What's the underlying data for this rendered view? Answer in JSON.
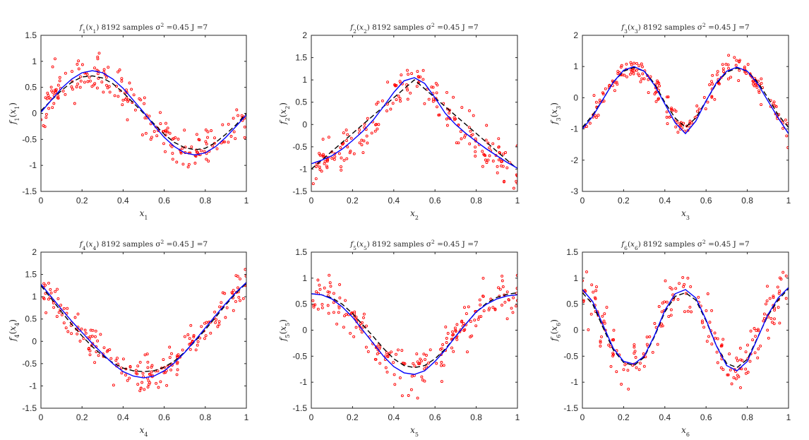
{
  "figure": {
    "colors": {
      "samples": "#ff0000",
      "estimate": "#0000ff",
      "truth": "#000000",
      "axes": "#262626"
    }
  },
  "chart_data": [
    {
      "type": "scatter",
      "title": "f1(x1) 8192 samples σ² =0.45 J =7",
      "title_parts": {
        "f": "f",
        "sub": "1",
        "x": "x",
        "xsub": "1",
        "rest": ") 8192 samples σ",
        "sup": "2",
        "tail": " =0.45 J =7"
      },
      "xlabel": "x",
      "xlabel_sub": "1",
      "ylabel": "f",
      "ylabel_sub": "1",
      "ylabel_arg_sub": "1",
      "xlim": [
        0,
        1
      ],
      "ylim": [
        -1.5,
        1.5
      ],
      "xticks": [
        0,
        0.2,
        0.4,
        0.6,
        0.8,
        1
      ],
      "xtick_labels": [
        "0",
        "0.2",
        "0.4",
        "0.6",
        "0.8",
        "1"
      ],
      "yticks": [
        -1.5,
        -1,
        -0.5,
        0,
        0.5,
        1,
        1.5
      ],
      "ytick_labels": [
        "-1.5",
        "-1",
        "-0.5",
        "0",
        "0.5",
        "1",
        "1.5"
      ],
      "series": [
        {
          "name": "estimate",
          "style": "solid-blue",
          "x": [
            0,
            0.05,
            0.1,
            0.15,
            0.2,
            0.25,
            0.3,
            0.35,
            0.4,
            0.45,
            0.5,
            0.55,
            0.6,
            0.65,
            0.7,
            0.75,
            0.8,
            0.85,
            0.9,
            0.95,
            1
          ],
          "y": [
            0.02,
            0.25,
            0.48,
            0.66,
            0.78,
            0.82,
            0.78,
            0.66,
            0.48,
            0.25,
            0.02,
            -0.23,
            -0.46,
            -0.64,
            -0.76,
            -0.8,
            -0.76,
            -0.64,
            -0.46,
            -0.25,
            -0.03
          ]
        },
        {
          "name": "truth",
          "style": "dashed-black",
          "x": [
            0,
            0.05,
            0.1,
            0.15,
            0.2,
            0.25,
            0.3,
            0.35,
            0.4,
            0.45,
            0.5,
            0.55,
            0.6,
            0.65,
            0.7,
            0.75,
            0.8,
            0.85,
            0.9,
            0.95,
            1
          ],
          "y": [
            0.05,
            0.25,
            0.44,
            0.6,
            0.7,
            0.72,
            0.68,
            0.57,
            0.4,
            0.2,
            0,
            -0.2,
            -0.4,
            -0.56,
            -0.66,
            -0.7,
            -0.67,
            -0.56,
            -0.4,
            -0.22,
            0
          ]
        }
      ],
      "noise": {
        "n": 200,
        "sigma": 0.2,
        "seed": 11
      }
    },
    {
      "type": "scatter",
      "title": "f2(x2) 8192 samples σ² =0.45 J =7",
      "title_parts": {
        "f": "f",
        "sub": "2",
        "x": "x",
        "xsub": "2",
        "rest": ") 8192 samples σ",
        "sup": "2",
        "tail": " =0.45 J =7"
      },
      "xlabel": "x",
      "xlabel_sub": "2",
      "ylabel": "f",
      "ylabel_sub": "2",
      "ylabel_arg_sub": "2",
      "xlim": [
        0,
        1
      ],
      "ylim": [
        -1.5,
        2
      ],
      "xticks": [
        0,
        0.2,
        0.4,
        0.6,
        0.8,
        1
      ],
      "xtick_labels": [
        "0",
        "0.2",
        "0.4",
        "0.6",
        "0.8",
        "1"
      ],
      "yticks": [
        -1.5,
        -1,
        -0.5,
        0,
        0.5,
        1,
        1.5,
        2
      ],
      "ytick_labels": [
        "-1.5",
        "-1",
        "-0.5",
        "0",
        "0.5",
        "1",
        "1.5",
        "2"
      ],
      "series": [
        {
          "name": "estimate",
          "style": "solid-blue",
          "x": [
            0,
            0.05,
            0.1,
            0.15,
            0.2,
            0.25,
            0.3,
            0.35,
            0.4,
            0.45,
            0.5,
            0.55,
            0.6,
            0.65,
            0.7,
            0.75,
            0.8,
            0.85,
            0.9,
            0.95,
            1
          ],
          "y": [
            -0.88,
            -0.8,
            -0.7,
            -0.55,
            -0.36,
            -0.15,
            0.1,
            0.4,
            0.72,
            0.98,
            1.05,
            0.92,
            0.6,
            0.25,
            0.0,
            -0.2,
            -0.38,
            -0.55,
            -0.7,
            -0.85,
            -0.98
          ]
        },
        {
          "name": "truth",
          "style": "dashed-black",
          "x": [
            0,
            0.1,
            0.2,
            0.3,
            0.4,
            0.5,
            0.6,
            0.7,
            0.8,
            0.9,
            1
          ],
          "y": [
            -1,
            -0.6,
            -0.2,
            0.2,
            0.6,
            1,
            0.6,
            0.2,
            -0.2,
            -0.6,
            -1
          ]
        }
      ],
      "noise": {
        "n": 200,
        "sigma": 0.22,
        "seed": 23
      }
    },
    {
      "type": "scatter",
      "title": "f3(x3) 8192 samples σ² =0.45 J =7",
      "title_parts": {
        "f": "f",
        "sub": "3",
        "x": "x",
        "xsub": "3",
        "rest": ") 8192 samples σ",
        "sup": "2",
        "tail": " =0.45 J =7"
      },
      "xlabel": "x",
      "xlabel_sub": "3",
      "ylabel": "f",
      "ylabel_sub": "3",
      "ylabel_arg_sub": "3",
      "xlim": [
        0,
        1
      ],
      "ylim": [
        -3,
        2
      ],
      "xticks": [
        0,
        0.2,
        0.4,
        0.6,
        0.8,
        1
      ],
      "xtick_labels": [
        "0",
        "0.2",
        "0.4",
        "0.6",
        "0.8",
        "1"
      ],
      "yticks": [
        -3,
        -2,
        -1,
        0,
        1,
        2
      ],
      "ytick_labels": [
        "-3",
        "-2",
        "-1",
        "0",
        "1",
        "2"
      ],
      "series": [
        {
          "name": "estimate",
          "style": "solid-blue",
          "x": [
            0,
            0.05,
            0.1,
            0.15,
            0.2,
            0.25,
            0.3,
            0.35,
            0.4,
            0.45,
            0.5,
            0.55,
            0.6,
            0.65,
            0.7,
            0.75,
            0.8,
            0.85,
            0.9,
            0.95,
            1
          ],
          "y": [
            -1.0,
            -0.6,
            -0.05,
            0.5,
            0.88,
            1.0,
            0.85,
            0.4,
            -0.2,
            -0.8,
            -1.15,
            -0.75,
            -0.1,
            0.48,
            0.85,
            0.98,
            0.85,
            0.45,
            -0.1,
            -0.65,
            -1.15
          ]
        },
        {
          "name": "truth",
          "style": "dashed-black",
          "x": [
            0,
            0.05,
            0.1,
            0.15,
            0.2,
            0.25,
            0.3,
            0.35,
            0.4,
            0.45,
            0.5,
            0.55,
            0.6,
            0.65,
            0.7,
            0.75,
            0.8,
            0.85,
            0.9,
            0.95,
            1
          ],
          "y": [
            -0.95,
            -0.55,
            -0.05,
            0.5,
            0.85,
            0.97,
            0.85,
            0.45,
            -0.15,
            -0.65,
            -0.95,
            -0.65,
            -0.1,
            0.45,
            0.82,
            0.95,
            0.85,
            0.5,
            0,
            -0.55,
            -0.95
          ]
        }
      ],
      "noise": {
        "n": 200,
        "sigma": 0.2,
        "seed": 37
      }
    },
    {
      "type": "scatter",
      "title": "f4(x4) 8192 samples σ² =0.45 J =7",
      "title_parts": {
        "f": "f",
        "sub": "4",
        "x": "x",
        "xsub": "4",
        "rest": ") 8192 samples σ",
        "sup": "2",
        "tail": " =0.45 J =7"
      },
      "xlabel": "x",
      "xlabel_sub": "4",
      "ylabel": "f",
      "ylabel_sub": "4",
      "ylabel_arg_sub": "4",
      "xlim": [
        0,
        1
      ],
      "ylim": [
        -1.5,
        2
      ],
      "xticks": [
        0,
        0.2,
        0.4,
        0.6,
        0.8,
        1
      ],
      "xtick_labels": [
        "0",
        "0.2",
        "0.4",
        "0.6",
        "0.8",
        "1"
      ],
      "yticks": [
        -1.5,
        -1,
        -0.5,
        0,
        0.5,
        1,
        1.5,
        2
      ],
      "ytick_labels": [
        "-1.5",
        "-1",
        "-0.5",
        "0",
        "0.5",
        "1",
        "1.5",
        "2"
      ],
      "series": [
        {
          "name": "estimate",
          "style": "solid-blue",
          "x": [
            0,
            0.05,
            0.1,
            0.15,
            0.2,
            0.25,
            0.3,
            0.35,
            0.4,
            0.45,
            0.5,
            0.55,
            0.6,
            0.65,
            0.7,
            0.75,
            0.8,
            0.85,
            0.9,
            0.95,
            1
          ],
          "y": [
            1.28,
            1.0,
            0.72,
            0.45,
            0.2,
            -0.05,
            -0.28,
            -0.5,
            -0.68,
            -0.78,
            -0.82,
            -0.78,
            -0.66,
            -0.48,
            -0.25,
            0.02,
            0.3,
            0.58,
            0.85,
            1.1,
            1.32
          ]
        },
        {
          "name": "truth",
          "style": "dashed-black",
          "x": [
            0,
            0.05,
            0.1,
            0.15,
            0.2,
            0.25,
            0.3,
            0.35,
            0.4,
            0.45,
            0.5,
            0.55,
            0.6,
            0.65,
            0.7,
            0.75,
            0.8,
            0.85,
            0.9,
            0.95,
            1
          ],
          "y": [
            1.25,
            0.96,
            0.66,
            0.38,
            0.12,
            -0.12,
            -0.32,
            -0.48,
            -0.6,
            -0.66,
            -0.68,
            -0.66,
            -0.58,
            -0.44,
            -0.24,
            0,
            0.26,
            0.54,
            0.82,
            1.08,
            1.3
          ]
        }
      ],
      "noise": {
        "n": 200,
        "sigma": 0.2,
        "seed": 41
      }
    },
    {
      "type": "scatter",
      "title": "f5(x5) 8192 samples σ² =0.45 J =7",
      "title_parts": {
        "f": "f",
        "sub": "5",
        "x": "x",
        "xsub": "5",
        "rest": ") 8192 samples σ",
        "sup": "2",
        "tail": " =0.45 J =7"
      },
      "xlabel": "x",
      "xlabel_sub": "5",
      "ylabel": "f",
      "ylabel_sub": "5",
      "ylabel_arg_sub": "5",
      "xlim": [
        0,
        1
      ],
      "ylim": [
        -1.5,
        1.5
      ],
      "xticks": [
        0,
        0.2,
        0.4,
        0.6,
        0.8,
        1
      ],
      "xtick_labels": [
        "0",
        "0.2",
        "0.4",
        "0.6",
        "0.8",
        "1"
      ],
      "yticks": [
        -1.5,
        -1,
        -0.5,
        0,
        0.5,
        1,
        1.5
      ],
      "ytick_labels": [
        "-1.5",
        "-1",
        "-0.5",
        "0",
        "0.5",
        "1",
        "1.5"
      ],
      "series": [
        {
          "name": "estimate",
          "style": "solid-blue",
          "x": [
            0,
            0.05,
            0.1,
            0.15,
            0.2,
            0.25,
            0.3,
            0.35,
            0.4,
            0.45,
            0.5,
            0.55,
            0.6,
            0.65,
            0.7,
            0.75,
            0.8,
            0.85,
            0.9,
            0.95,
            1
          ],
          "y": [
            0.7,
            0.68,
            0.6,
            0.45,
            0.25,
            0.0,
            -0.25,
            -0.5,
            -0.7,
            -0.82,
            -0.85,
            -0.78,
            -0.6,
            -0.38,
            -0.12,
            0.12,
            0.35,
            0.5,
            0.6,
            0.66,
            0.68
          ]
        },
        {
          "name": "truth",
          "style": "dashed-black",
          "x": [
            0,
            0.05,
            0.1,
            0.15,
            0.2,
            0.25,
            0.3,
            0.35,
            0.4,
            0.45,
            0.5,
            0.55,
            0.6,
            0.65,
            0.7,
            0.75,
            0.8,
            0.85,
            0.9,
            0.95,
            1
          ],
          "y": [
            0.7,
            0.68,
            0.62,
            0.5,
            0.32,
            0.1,
            -0.12,
            -0.35,
            -0.55,
            -0.68,
            -0.72,
            -0.68,
            -0.55,
            -0.36,
            -0.12,
            0.12,
            0.35,
            0.52,
            0.63,
            0.69,
            0.72
          ]
        }
      ],
      "noise": {
        "n": 200,
        "sigma": 0.2,
        "seed": 53
      }
    },
    {
      "type": "scatter",
      "title": "f6(x6) 8192 samples σ² =0.45 J =7",
      "title_parts": {
        "f": "f",
        "sub": "6",
        "x": "x",
        "xsub": "6",
        "rest": ") 8192 samples σ",
        "sup": "2",
        "tail": " =0.45 J =7"
      },
      "xlabel": "x",
      "xlabel_sub": "6",
      "ylabel": "f",
      "ylabel_sub": "6",
      "ylabel_arg_sub": "6",
      "xlim": [
        0,
        1
      ],
      "ylim": [
        -1.5,
        1.5
      ],
      "xticks": [
        0,
        0.2,
        0.4,
        0.6,
        0.8,
        1
      ],
      "xtick_labels": [
        "0",
        "0.2",
        "0.4",
        "0.6",
        "0.8",
        "1"
      ],
      "yticks": [
        -1.5,
        -1,
        -0.5,
        0,
        0.5,
        1,
        1.5
      ],
      "ytick_labels": [
        "-1.5",
        "-1",
        "-0.5",
        "0",
        "0.5",
        "1",
        "1.5"
      ],
      "series": [
        {
          "name": "estimate",
          "style": "solid-blue",
          "x": [
            0,
            0.05,
            0.1,
            0.15,
            0.2,
            0.25,
            0.3,
            0.35,
            0.4,
            0.45,
            0.5,
            0.55,
            0.6,
            0.65,
            0.7,
            0.75,
            0.8,
            0.85,
            0.9,
            0.95,
            1
          ],
          "y": [
            0.78,
            0.55,
            0.1,
            -0.35,
            -0.6,
            -0.65,
            -0.5,
            -0.1,
            0.38,
            0.7,
            0.78,
            0.62,
            0.2,
            -0.3,
            -0.68,
            -0.78,
            -0.6,
            -0.15,
            0.3,
            0.62,
            0.82
          ]
        },
        {
          "name": "truth",
          "style": "dashed-black",
          "x": [
            0,
            0.05,
            0.1,
            0.15,
            0.2,
            0.25,
            0.3,
            0.35,
            0.4,
            0.45,
            0.5,
            0.55,
            0.6,
            0.65,
            0.7,
            0.75,
            0.8,
            0.85,
            0.9,
            0.95,
            1
          ],
          "y": [
            0.72,
            0.5,
            0.05,
            -0.38,
            -0.62,
            -0.68,
            -0.52,
            -0.12,
            0.35,
            0.65,
            0.72,
            0.58,
            0.18,
            -0.3,
            -0.64,
            -0.72,
            -0.56,
            -0.14,
            0.28,
            0.58,
            0.8
          ]
        }
      ],
      "noise": {
        "n": 200,
        "sigma": 0.22,
        "seed": 67
      }
    }
  ]
}
